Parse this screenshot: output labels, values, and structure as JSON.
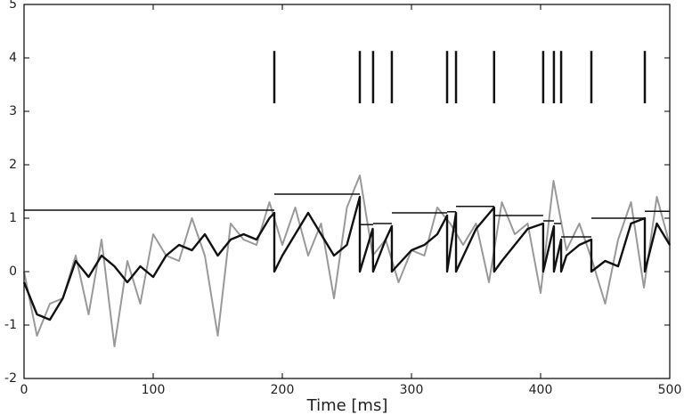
{
  "chart_data": {
    "type": "line",
    "x_label": "Time [ms]",
    "xlim": [
      0,
      500
    ],
    "ylim": [
      -2,
      5
    ],
    "xticks": [
      0,
      100,
      200,
      300,
      400,
      500
    ],
    "yticks": [
      -2,
      -1,
      0,
      1,
      2,
      3,
      4,
      5
    ],
    "grid": false,
    "series": [
      {
        "color": "#999999",
        "x": [
          0,
          10,
          20,
          30,
          40,
          50,
          60,
          70,
          80,
          90,
          100,
          110,
          120,
          130,
          140,
          150,
          160,
          170,
          180,
          190,
          200,
          210,
          220,
          230,
          240,
          250,
          260,
          270,
          280,
          290,
          300,
          310,
          320,
          330,
          340,
          350,
          360,
          370,
          380,
          390,
          400,
          410,
          420,
          430,
          440,
          450,
          460,
          470,
          480,
          490,
          500
        ],
        "values": [
          0.0,
          -1.2,
          -0.6,
          -0.5,
          0.3,
          -0.8,
          0.6,
          -1.4,
          0.2,
          -0.6,
          0.7,
          0.3,
          0.2,
          1.0,
          0.3,
          -1.2,
          0.9,
          0.6,
          0.5,
          1.3,
          0.5,
          1.2,
          0.3,
          0.9,
          -0.5,
          1.2,
          1.8,
          0.3,
          0.6,
          -0.2,
          0.4,
          0.3,
          1.2,
          0.9,
          0.5,
          0.9,
          -0.2,
          1.3,
          0.7,
          0.9,
          -0.4,
          1.7,
          0.4,
          0.9,
          0.2,
          -0.6,
          0.6,
          1.3,
          -0.3,
          1.4,
          0.5
        ]
      },
      {
        "color": "#111111",
        "x": [
          0,
          10,
          20,
          30,
          40,
          50,
          60,
          70,
          80,
          90,
          100,
          110,
          120,
          130,
          140,
          150,
          160,
          170,
          180,
          190,
          193.8,
          193.8,
          200,
          210,
          220,
          230,
          240,
          250,
          260,
          260,
          270,
          270.3,
          280,
          284.8,
          284.8,
          300,
          310,
          320,
          327.6,
          327.6,
          334.5,
          334.5,
          350,
          364,
          364,
          370,
          380,
          390,
          402,
          402,
          410.3,
          410.3,
          415.9,
          415.9,
          420,
          430,
          439.3,
          439.3,
          450,
          460,
          470,
          480.7,
          480.7,
          490,
          500
        ],
        "values": [
          -0.2,
          -0.8,
          -0.9,
          -0.5,
          0.2,
          -0.1,
          0.3,
          0.1,
          -0.2,
          0.1,
          -0.1,
          0.3,
          0.5,
          0.4,
          0.7,
          0.3,
          0.6,
          0.7,
          0.6,
          1.0,
          1.1,
          0,
          0.3,
          0.7,
          1.1,
          0.7,
          0.3,
          0.5,
          1.4,
          0,
          0.8,
          0,
          0.6,
          0.85,
          0,
          0.4,
          0.5,
          0.7,
          1.05,
          0,
          1.1,
          0,
          0.8,
          1.2,
          0,
          0.2,
          0.5,
          0.8,
          0.9,
          0,
          0.85,
          0,
          0.6,
          0,
          0.3,
          0.5,
          0.6,
          0,
          0.2,
          0.1,
          0.9,
          1.0,
          0,
          0.9,
          0.5
        ]
      }
    ],
    "threshold": {
      "color": "#111111",
      "edges": [
        0,
        193.8,
        260,
        270.3,
        284.8,
        327.6,
        334.5,
        364,
        402,
        410.3,
        415.9,
        439.3,
        480.7,
        500
      ],
      "values": [
        1.15,
        1.45,
        0.88,
        0.9,
        1.1,
        1.12,
        1.22,
        1.05,
        0.95,
        0.9,
        0.65,
        1.0,
        1.13
      ]
    },
    "spikes": {
      "color": "#111111",
      "low": 3.15,
      "high": 4.13,
      "x": [
        193.8,
        260,
        270.3,
        284.8,
        327.6,
        334.5,
        364,
        402,
        410.3,
        415.9,
        439.3,
        480.7
      ]
    }
  }
}
